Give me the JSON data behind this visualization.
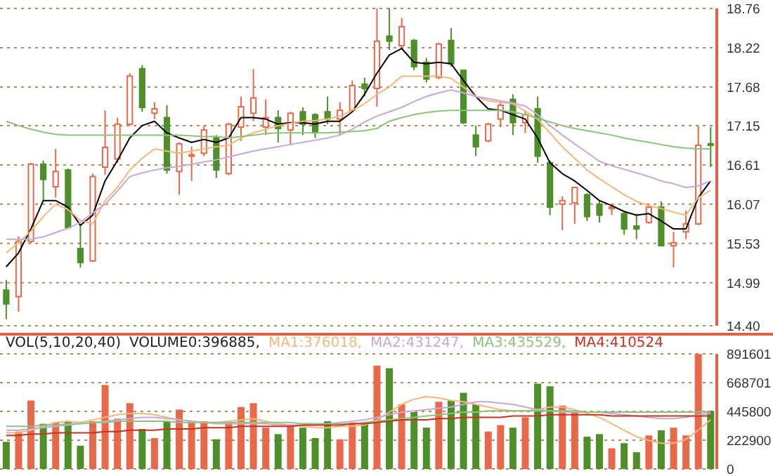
{
  "chart_data": [
    {
      "type": "candlestick",
      "categories": [
        null,
        null,
        null,
        null,
        null,
        null,
        null,
        null,
        null,
        null,
        null,
        null,
        null,
        null,
        null,
        null,
        null,
        null,
        null,
        null,
        null,
        null,
        null,
        null,
        null,
        null,
        null,
        null,
        null,
        null,
        null,
        null,
        null,
        null,
        null,
        null,
        null,
        null,
        null,
        null,
        null,
        null,
        null,
        null,
        null,
        null,
        null,
        null,
        null,
        null,
        null,
        null,
        null,
        null,
        null,
        null,
        null,
        null
      ],
      "ohlc": [
        [
          14.89,
          15.03,
          14.49,
          14.7
        ],
        [
          14.8,
          15.63,
          14.59,
          15.56
        ],
        [
          15.56,
          16.64,
          15.53,
          16.62
        ],
        [
          16.62,
          16.67,
          16.12,
          16.41
        ],
        [
          16.31,
          16.83,
          16.16,
          16.52
        ],
        [
          16.54,
          16.56,
          15.73,
          15.75
        ],
        [
          15.46,
          15.78,
          15.2,
          15.27
        ],
        [
          15.29,
          16.49,
          15.29,
          16.45
        ],
        [
          16.58,
          17.36,
          16.47,
          16.85
        ],
        [
          16.69,
          17.26,
          16.64,
          17.17
        ],
        [
          17.17,
          17.87,
          17.15,
          17.83
        ],
        [
          17.93,
          17.98,
          17.34,
          17.4
        ],
        [
          17.32,
          17.47,
          17.24,
          17.38
        ],
        [
          17.26,
          17.43,
          16.49,
          16.54
        ],
        [
          16.52,
          16.92,
          16.2,
          16.9
        ],
        [
          16.73,
          16.86,
          16.39,
          16.75
        ],
        [
          16.77,
          17.15,
          16.73,
          17.09
        ],
        [
          16.98,
          17.02,
          16.43,
          16.54
        ],
        [
          16.49,
          17.19,
          16.47,
          17.17
        ],
        [
          17.13,
          17.55,
          16.94,
          17.41
        ],
        [
          17.32,
          17.93,
          17.21,
          17.53
        ],
        [
          17.13,
          17.51,
          17.02,
          17.26
        ],
        [
          17.26,
          17.36,
          16.92,
          17.11
        ],
        [
          17.09,
          17.34,
          16.88,
          17.32
        ],
        [
          17.34,
          17.4,
          17.02,
          17.17
        ],
        [
          17.3,
          17.32,
          16.98,
          17.05
        ],
        [
          17.34,
          17.55,
          17.17,
          17.24
        ],
        [
          17.24,
          17.47,
          17.02,
          17.36
        ],
        [
          17.36,
          17.77,
          17.34,
          17.7
        ],
        [
          17.72,
          17.81,
          17.55,
          17.66
        ],
        [
          17.66,
          18.76,
          17.41,
          18.31
        ],
        [
          18.38,
          18.76,
          18.19,
          18.31
        ],
        [
          18.25,
          18.63,
          18.21,
          18.51
        ],
        [
          18.32,
          18.34,
          17.91,
          17.96
        ],
        [
          18.02,
          18.08,
          17.74,
          17.79
        ],
        [
          17.81,
          18.29,
          17.79,
          18.27
        ],
        [
          18.32,
          18.49,
          17.96,
          18.0
        ],
        [
          17.91,
          17.91,
          17.17,
          17.19
        ],
        [
          17.02,
          17.15,
          16.73,
          16.86
        ],
        [
          16.94,
          17.19,
          16.92,
          17.17
        ],
        [
          17.24,
          17.49,
          17.13,
          17.43
        ],
        [
          17.51,
          17.58,
          17.02,
          17.19
        ],
        [
          17.19,
          17.36,
          17.05,
          17.3
        ],
        [
          17.38,
          17.55,
          16.64,
          16.73
        ],
        [
          16.64,
          16.67,
          15.92,
          16.03
        ],
        [
          16.07,
          16.18,
          15.71,
          16.12
        ],
        [
          16.09,
          16.31,
          15.8,
          16.3
        ],
        [
          16.2,
          16.22,
          15.84,
          15.9
        ],
        [
          16.07,
          16.11,
          15.82,
          15.92
        ],
        [
          16.01,
          16.07,
          15.92,
          16.03
        ],
        [
          15.94,
          15.98,
          15.65,
          15.73
        ],
        [
          15.77,
          15.94,
          15.59,
          15.73
        ],
        [
          15.82,
          16.07,
          15.8,
          16.03
        ],
        [
          16.03,
          16.11,
          15.5,
          15.5
        ],
        [
          15.5,
          15.69,
          15.2,
          15.54
        ],
        [
          15.69,
          15.98,
          15.59,
          15.8
        ],
        [
          15.8,
          17.15,
          15.78,
          16.88
        ],
        [
          16.9,
          17.13,
          16.58,
          16.88
        ]
      ],
      "colors": [
        "#4f8f2a",
        "#e8694a",
        "#e8694a",
        "#4f8f2a",
        "#e8694a",
        "#4f8f2a",
        "#4f8f2a",
        "#e8694a",
        "#e8694a",
        "#e8694a",
        "#e8694a",
        "#4f8f2a",
        "#e8694a",
        "#4f8f2a",
        "#e8694a",
        "#e8694a",
        "#e8694a",
        "#4f8f2a",
        "#e8694a",
        "#e8694a",
        "#e8694a",
        "#e8694a",
        "#4f8f2a",
        "#e8694a",
        "#4f8f2a",
        "#4f8f2a",
        "#4f8f2a",
        "#e8694a",
        "#e8694a",
        "#4f8f2a",
        "#e8694a",
        "#4f8f2a",
        "#e8694a",
        "#4f8f2a",
        "#4f8f2a",
        "#e8694a",
        "#4f8f2a",
        "#4f8f2a",
        "#4f8f2a",
        "#e8694a",
        "#e8694a",
        "#4f8f2a",
        "#e8694a",
        "#4f8f2a",
        "#4f8f2a",
        "#e8694a",
        "#e8694a",
        "#4f8f2a",
        "#4f8f2a",
        "#e8694a",
        "#4f8f2a",
        "#4f8f2a",
        "#e8694a",
        "#4f8f2a",
        "#e8694a",
        "#e8694a",
        "#e8694a",
        "#4f8f2a"
      ],
      "series": [
        {
          "type": "line",
          "color": "#000000",
          "values": [
            15.21,
            15.4,
            15.73,
            16.12,
            16.12,
            16.03,
            15.78,
            15.92,
            16.39,
            16.67,
            16.98,
            17.15,
            17.21,
            17.05,
            16.98,
            16.92,
            16.96,
            16.92,
            16.98,
            17.26,
            17.26,
            17.24,
            17.17,
            17.19,
            17.19,
            17.17,
            17.21,
            17.21,
            17.34,
            17.58,
            17.87,
            18.12,
            18.21,
            18.02,
            18.0,
            18.02,
            18.0,
            17.77,
            17.55,
            17.38,
            17.36,
            17.3,
            17.24,
            16.98,
            16.64,
            16.49,
            16.39,
            16.26,
            16.12,
            16.05,
            15.97,
            15.92,
            15.94,
            15.84,
            15.73,
            15.73,
            16.16,
            16.39
          ]
        },
        {
          "type": "line",
          "color": "#f5b77a",
          "values": [
            15.4,
            15.54,
            15.7,
            15.9,
            16.07,
            16.0,
            15.85,
            15.8,
            16.12,
            16.3,
            16.54,
            16.7,
            16.83,
            16.8,
            16.77,
            16.8,
            16.83,
            16.86,
            16.88,
            16.98,
            17.05,
            17.1,
            17.15,
            17.18,
            17.21,
            17.22,
            17.24,
            17.28,
            17.36,
            17.45,
            17.58,
            17.68,
            17.83,
            17.83,
            17.83,
            17.83,
            17.8,
            17.68,
            17.55,
            17.49,
            17.47,
            17.45,
            17.35,
            17.24,
            17.05,
            16.86,
            16.7,
            16.54,
            16.42,
            16.31,
            16.2,
            16.11,
            16.05,
            16.01,
            15.96,
            15.92,
            16.16,
            16.26
          ]
        },
        {
          "type": "line",
          "color": "#c8a8d8",
          "values": [
            15.59,
            15.59,
            15.59,
            15.62,
            15.68,
            15.74,
            15.82,
            15.95,
            16.07,
            16.25,
            16.45,
            16.5,
            16.54,
            16.57,
            16.59,
            16.62,
            16.65,
            16.68,
            16.72,
            16.76,
            16.8,
            16.83,
            16.86,
            16.89,
            16.92,
            16.95,
            16.98,
            17.02,
            17.1,
            17.2,
            17.28,
            17.34,
            17.4,
            17.48,
            17.55,
            17.6,
            17.64,
            17.6,
            17.55,
            17.52,
            17.49,
            17.46,
            17.42,
            17.3,
            17.15,
            17.02,
            16.9,
            16.78,
            16.66,
            16.6,
            16.55,
            16.5,
            16.45,
            16.39,
            16.35,
            16.3,
            16.32,
            16.39
          ]
        },
        {
          "type": "line",
          "color": "#8cc47a",
          "values": [
            17.21,
            17.15,
            17.1,
            17.06,
            17.03,
            17.02,
            17.02,
            17.02,
            17.02,
            17.02,
            17.02,
            17.02,
            17.02,
            17.02,
            17.02,
            17.01,
            17.0,
            17.0,
            16.98,
            17.0,
            17.02,
            17.04,
            17.05,
            17.05,
            17.05,
            17.05,
            17.05,
            17.06,
            17.07,
            17.08,
            17.11,
            17.21,
            17.26,
            17.3,
            17.33,
            17.35,
            17.36,
            17.36,
            17.36,
            17.36,
            17.36,
            17.34,
            17.3,
            17.25,
            17.2,
            17.15,
            17.11,
            17.08,
            17.05,
            17.02,
            16.98,
            16.95,
            16.92,
            16.89,
            16.86,
            16.84,
            16.83,
            16.83
          ]
        }
      ],
      "ylim": [
        14.4,
        18.76
      ],
      "yticks": [
        {
          "value": 14.4,
          "label": "14.40"
        },
        14.99,
        15.53,
        16.07,
        16.61,
        17.15,
        17.68,
        18.22,
        18.76
      ],
      "grid": "y"
    },
    {
      "type": "bar",
      "title": "VOL(5,10,20,40)",
      "categories": [
        null,
        null,
        null,
        null,
        null,
        null,
        null,
        null,
        null,
        null,
        null,
        null,
        null,
        null,
        null,
        null,
        null,
        null,
        null,
        null,
        null,
        null,
        null,
        null,
        null,
        null,
        null,
        null,
        null,
        null,
        null,
        null,
        null,
        null,
        null,
        null,
        null,
        null,
        null,
        null,
        null,
        null,
        null,
        null,
        null,
        null,
        null,
        null,
        null,
        null,
        null,
        null,
        null,
        null,
        null,
        null,
        null,
        null
      ],
      "series": [
        {
          "type": "bar",
          "name": "VOLUME0:396885,",
          "colors": [
            "#4f8f2a",
            "#e8694a",
            "#e8694a",
            "#4f8f2a",
            "#e8694a",
            "#4f8f2a",
            "#4f8f2a",
            "#e8694a",
            "#e8694a",
            "#e8694a",
            "#e8694a",
            "#4f8f2a",
            "#e8694a",
            "#4f8f2a",
            "#e8694a",
            "#e8694a",
            "#e8694a",
            "#4f8f2a",
            "#e8694a",
            "#e8694a",
            "#e8694a",
            "#e8694a",
            "#4f8f2a",
            "#e8694a",
            "#4f8f2a",
            "#4f8f2a",
            "#4f8f2a",
            "#e8694a",
            "#e8694a",
            "#4f8f2a",
            "#e8694a",
            "#4f8f2a",
            "#e8694a",
            "#4f8f2a",
            "#4f8f2a",
            "#e8694a",
            "#4f8f2a",
            "#4f8f2a",
            "#4f8f2a",
            "#e8694a",
            "#e8694a",
            "#4f8f2a",
            "#e8694a",
            "#4f8f2a",
            "#4f8f2a",
            "#e8694a",
            "#e8694a",
            "#4f8f2a",
            "#4f8f2a",
            "#e8694a",
            "#4f8f2a",
            "#4f8f2a",
            "#e8694a",
            "#4f8f2a",
            "#e8694a",
            "#e8694a",
            "#e8694a",
            "#4f8f2a"
          ],
          "values": [
            210000,
            290000,
            530000,
            350000,
            360000,
            370000,
            180000,
            370000,
            650000,
            390000,
            510000,
            310000,
            240000,
            370000,
            460000,
            370000,
            370000,
            230000,
            360000,
            480000,
            510000,
            320000,
            270000,
            330000,
            320000,
            240000,
            370000,
            230000,
            360000,
            360000,
            800000,
            780000,
            500000,
            440000,
            320000,
            520000,
            530000,
            590000,
            500000,
            290000,
            340000,
            320000,
            400000,
            660000,
            640000,
            490000,
            450000,
            250000,
            270000,
            160000,
            200000,
            130000,
            260000,
            300000,
            320000,
            260000,
            890000,
            450000
          ]
        },
        {
          "type": "line",
          "name": "MA1:376018,",
          "color": "#f5b77a",
          "values": [
            280000,
            280000,
            300000,
            330000,
            360000,
            370000,
            360000,
            380000,
            400000,
            420000,
            430000,
            430000,
            420000,
            400000,
            380000,
            370000,
            360000,
            360000,
            370000,
            380000,
            390000,
            370000,
            350000,
            340000,
            330000,
            320000,
            320000,
            330000,
            330000,
            340000,
            380000,
            440000,
            500000,
            540000,
            560000,
            550000,
            530000,
            520000,
            500000,
            480000,
            460000,
            450000,
            450000,
            460000,
            480000,
            480000,
            460000,
            430000,
            400000,
            350000,
            300000,
            250000,
            220000,
            200000,
            200000,
            230000,
            300000,
            380000
          ]
        },
        {
          "type": "line",
          "name": "MA2:431247,",
          "color": "#c8a8d8",
          "values": [
            300000,
            300000,
            310000,
            320000,
            330000,
            340000,
            350000,
            360000,
            370000,
            380000,
            390000,
            400000,
            400000,
            390000,
            380000,
            370000,
            360000,
            350000,
            350000,
            350000,
            350000,
            350000,
            340000,
            340000,
            340000,
            340000,
            350000,
            360000,
            370000,
            380000,
            400000,
            420000,
            440000,
            450000,
            460000,
            470000,
            480000,
            500000,
            520000,
            520000,
            510000,
            500000,
            480000,
            460000,
            450000,
            440000,
            440000,
            440000,
            440000,
            430000,
            420000,
            410000,
            400000,
            390000,
            390000,
            400000,
            420000,
            430000
          ]
        },
        {
          "type": "line",
          "name": "MA3:435529,",
          "color": "#8cc47a",
          "values": [
            330000,
            330000,
            330000,
            340000,
            340000,
            350000,
            350000,
            360000,
            360000,
            370000,
            370000,
            370000,
            370000,
            370000,
            360000,
            360000,
            360000,
            360000,
            360000,
            360000,
            360000,
            360000,
            360000,
            360000,
            350000,
            350000,
            350000,
            350000,
            350000,
            360000,
            370000,
            380000,
            390000,
            400000,
            410000,
            420000,
            430000,
            440000,
            440000,
            450000,
            450000,
            450000,
            450000,
            450000,
            450000,
            450000,
            450000,
            440000,
            440000,
            440000,
            440000,
            440000,
            440000,
            440000,
            440000,
            440000,
            440000,
            440000
          ]
        },
        {
          "type": "line",
          "name": "MA4:410524",
          "color": "#c8321e",
          "values": [
            260000,
            260000,
            270000,
            270000,
            280000,
            280000,
            280000,
            280000,
            290000,
            290000,
            300000,
            300000,
            300000,
            310000,
            310000,
            310000,
            320000,
            320000,
            320000,
            330000,
            330000,
            330000,
            330000,
            330000,
            340000,
            340000,
            340000,
            340000,
            350000,
            350000,
            360000,
            370000,
            380000,
            380000,
            380000,
            390000,
            390000,
            400000,
            400000,
            400000,
            400000,
            410000,
            410000,
            410000,
            420000,
            420000,
            420000,
            420000,
            420000,
            410000,
            410000,
            410000,
            410000,
            410000,
            410000,
            410000,
            410000,
            410000
          ]
        }
      ],
      "ylim": [
        0,
        891601
      ],
      "yticks": [
        0,
        222900,
        445800,
        668701,
        891601
      ],
      "grid": "y",
      "legend": "top"
    }
  ]
}
